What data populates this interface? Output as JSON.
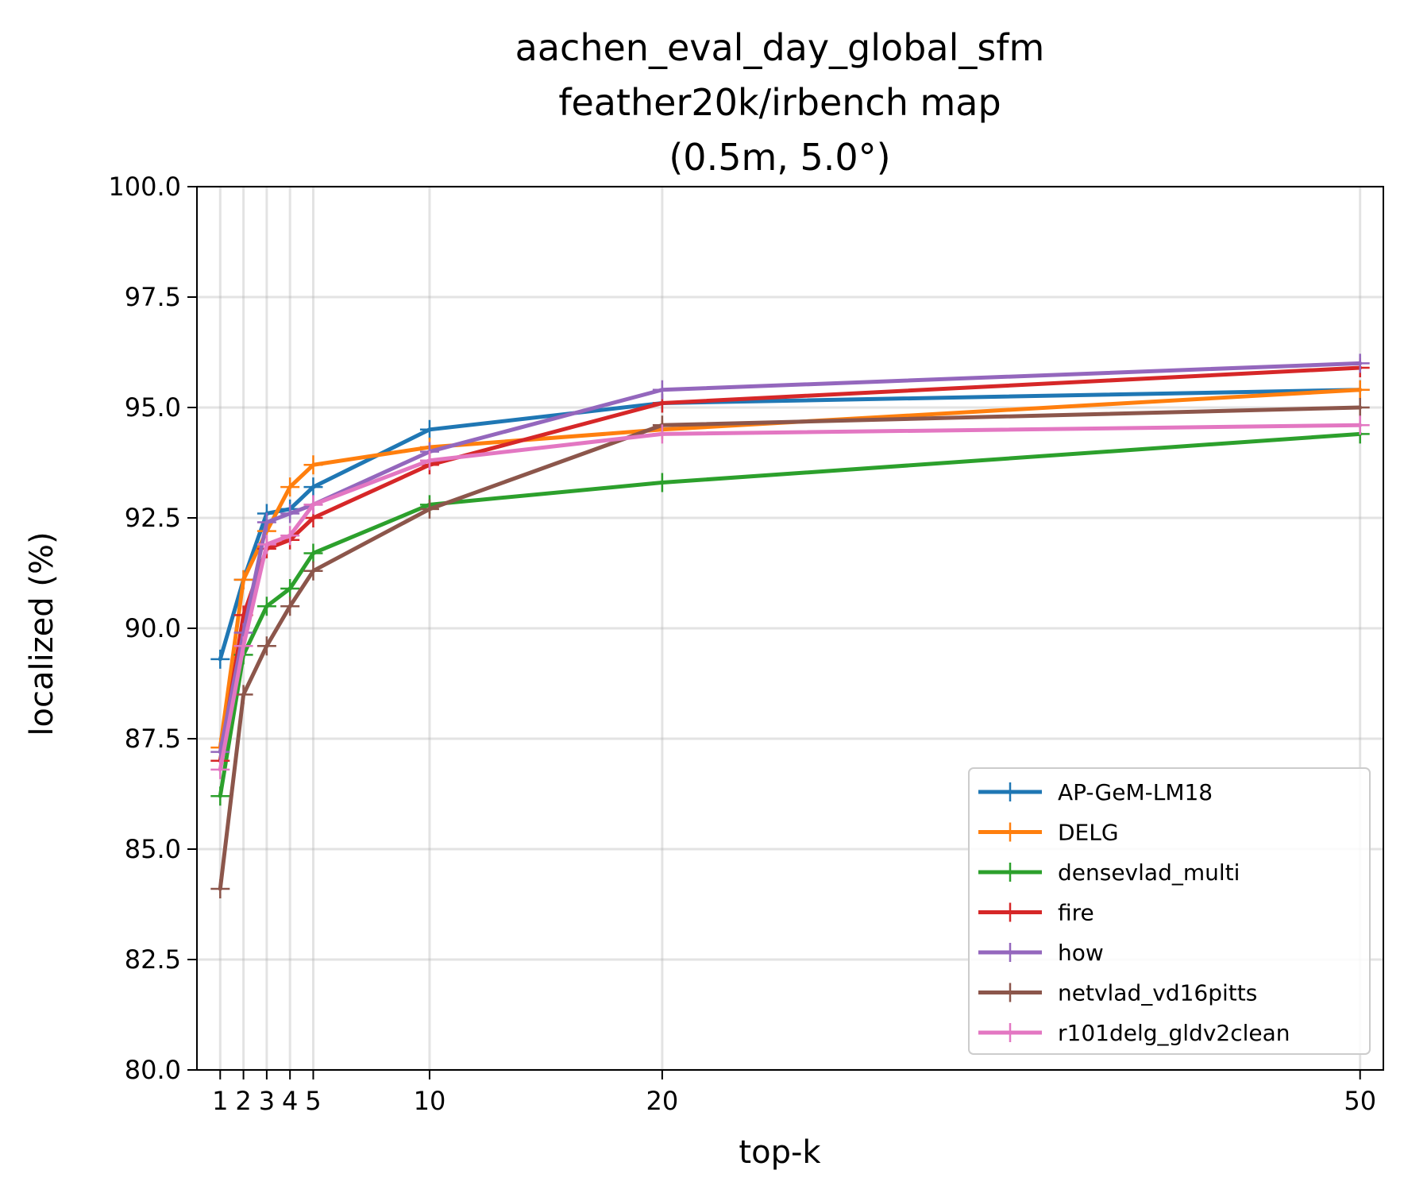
{
  "chart_data": {
    "type": "line",
    "title_lines": [
      "aachen_eval_day_global_sfm",
      "feather20k/irbench map",
      "(0.5m, 5.0°)"
    ],
    "xlabel": "top-k",
    "ylabel": "localized (%)",
    "x": [
      1,
      2,
      3,
      4,
      5,
      10,
      20,
      50
    ],
    "xticks": [
      1,
      2,
      3,
      4,
      5,
      10,
      20,
      50
    ],
    "xlim": [
      0,
      51
    ],
    "ylim": [
      80.0,
      100.0
    ],
    "yticks": [
      "80.0",
      "82.5",
      "85.0",
      "87.5",
      "90.0",
      "92.5",
      "95.0",
      "97.5",
      "100.0"
    ],
    "grid": true,
    "legend_position": "lower-right",
    "series": [
      {
        "name": "AP-GeM-LM18",
        "color": "#1f77b4",
        "values": [
          89.3,
          91.1,
          92.6,
          92.7,
          93.2,
          94.5,
          95.1,
          95.4
        ]
      },
      {
        "name": "DELG",
        "color": "#ff7f0e",
        "values": [
          87.3,
          91.1,
          92.2,
          93.2,
          93.7,
          94.1,
          94.5,
          95.4
        ]
      },
      {
        "name": "densevlad_multi",
        "color": "#2ca02c",
        "values": [
          86.2,
          89.4,
          90.5,
          90.9,
          91.7,
          92.8,
          93.3,
          94.4
        ]
      },
      {
        "name": "fire",
        "color": "#d62728",
        "values": [
          87.0,
          90.3,
          91.8,
          92.0,
          92.5,
          93.7,
          95.1,
          95.9
        ]
      },
      {
        "name": "how",
        "color": "#9467bd",
        "values": [
          87.2,
          89.9,
          92.4,
          92.6,
          92.8,
          94.0,
          95.4,
          96.0
        ]
      },
      {
        "name": "netvlad_vd16pitts",
        "color": "#8c564b",
        "values": [
          84.1,
          88.5,
          89.6,
          90.5,
          91.3,
          92.7,
          94.6,
          95.0
        ]
      },
      {
        "name": "r101delg_gldv2clean",
        "color": "#e377c2",
        "values": [
          86.8,
          89.6,
          91.9,
          92.1,
          92.8,
          93.8,
          94.4,
          94.6
        ]
      }
    ]
  }
}
